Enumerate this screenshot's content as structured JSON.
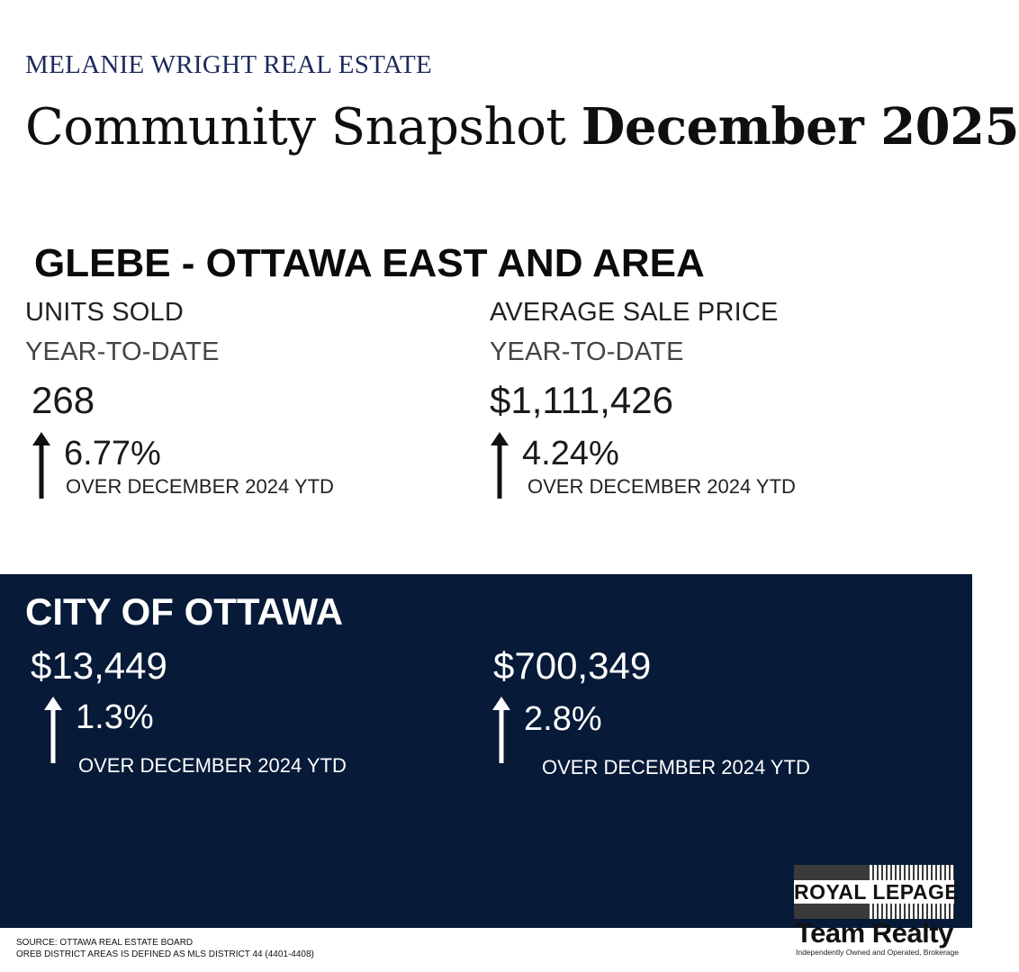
{
  "brand": "MELANIE WRIGHT REAL ESTATE",
  "title": {
    "regular": "Community Snapshot",
    "bold": "December 2025"
  },
  "area": {
    "name": "GLEBE - OTTAWA EAST AND AREA",
    "units": {
      "label": "UNITS SOLD",
      "period": "YEAR-TO-DATE",
      "value": "268",
      "change": "6.77%",
      "change_direction": "up",
      "comparison": "OVER DECEMBER 2024 YTD"
    },
    "price": {
      "label": "AVERAGE SALE PRICE",
      "period": "YEAR-TO-DATE",
      "value": "$1,111,426",
      "change": "4.24%",
      "change_direction": "up",
      "comparison": "OVER DECEMBER 2024 YTD"
    }
  },
  "city": {
    "name": "CITY OF OTTAWA",
    "units": {
      "value": "$13,449",
      "change": "1.3%",
      "change_direction": "up",
      "comparison": "OVER DECEMBER 2024 YTD"
    },
    "price": {
      "value": "$700,349",
      "change": "2.8%",
      "change_direction": "up",
      "comparison": "OVER DECEMBER 2024 YTD"
    }
  },
  "footer": {
    "source": "SOURCE: OTTAWA REAL ESTATE BOARD",
    "note": "OREB DISTRICT AREAS IS DEFINED AS MLS DISTRICT 44 (4401-4408)"
  },
  "logo": {
    "name": "ROYAL LEPAGE",
    "team": "Team Realty",
    "tagline": "Independently Owned and Operated, Brokerage"
  },
  "colors": {
    "navy": "#071a38",
    "brand_text": "#1d2a5c"
  },
  "icons": {
    "change_arrow": "arrow-up-icon"
  }
}
